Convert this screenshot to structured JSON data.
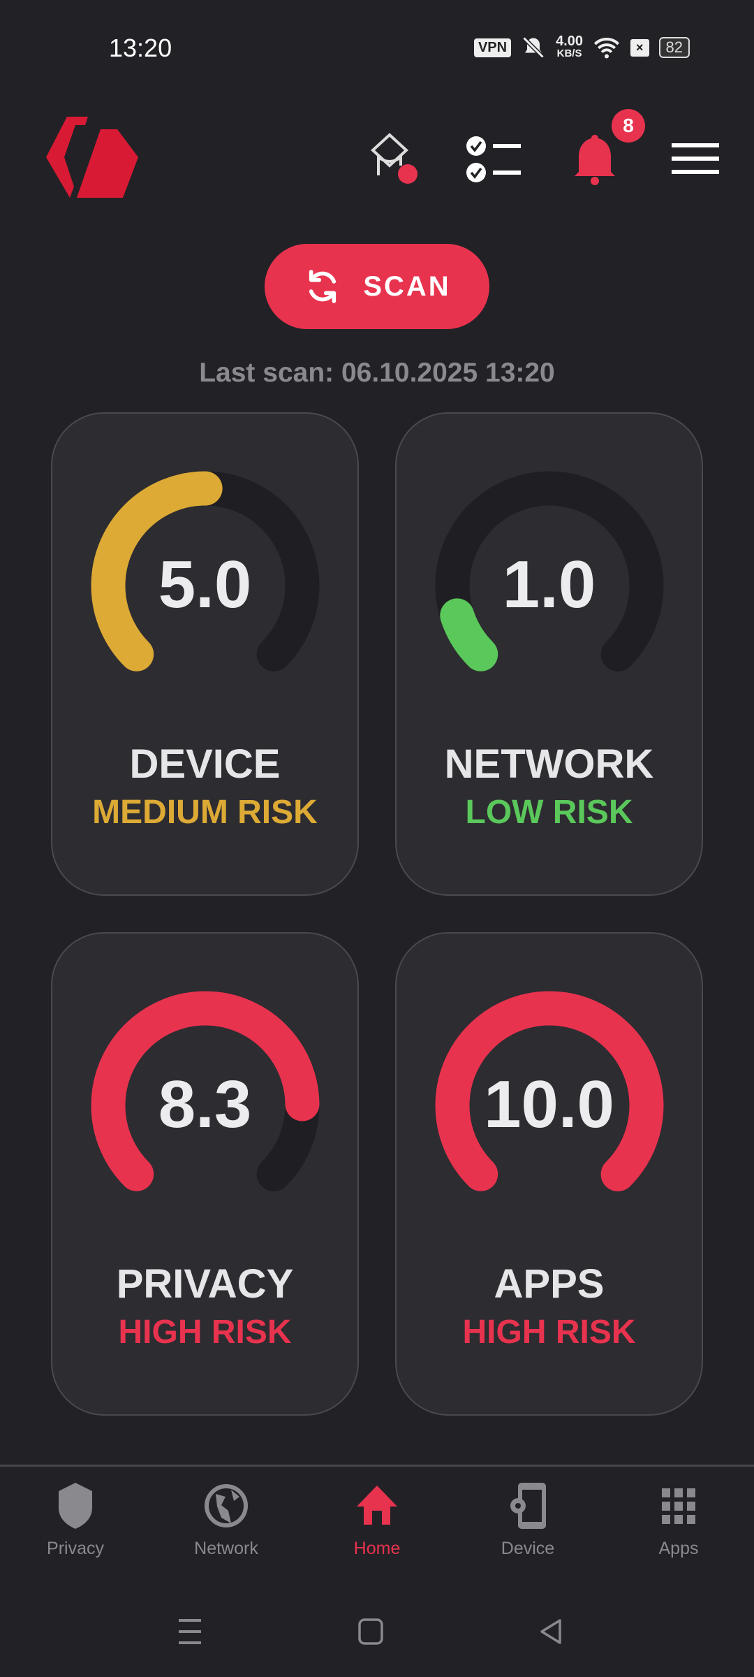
{
  "status_bar": {
    "time": "13:20",
    "vpn": "VPN",
    "speed_value": "4.00",
    "speed_unit": "KB/S",
    "battery": "82"
  },
  "header": {
    "notification_count": "8",
    "icons": [
      "logo",
      "graduation-cap-icon",
      "checklist-icon",
      "bell-icon",
      "menu-icon"
    ]
  },
  "scan": {
    "label": "SCAN",
    "last_scan": "Last scan: 06.10.2025 13:20"
  },
  "cards": [
    {
      "value": "5.0",
      "score": 5.0,
      "title": "DEVICE",
      "risk": "MEDIUM RISK",
      "color": "#dcaa35"
    },
    {
      "value": "1.0",
      "score": 1.0,
      "title": "NETWORK",
      "risk": "LOW RISK",
      "color": "#5ac85a"
    },
    {
      "value": "8.3",
      "score": 8.3,
      "title": "PRIVACY",
      "risk": "HIGH RISK",
      "color": "#e8334f"
    },
    {
      "value": "10.0",
      "score": 10.0,
      "title": "APPS",
      "risk": "HIGH RISK",
      "color": "#e8334f"
    }
  ],
  "score_max": 10,
  "nav": {
    "items": [
      {
        "label": "Privacy"
      },
      {
        "label": "Network"
      },
      {
        "label": "Home"
      },
      {
        "label": "Device"
      },
      {
        "label": "Apps"
      }
    ],
    "active": "Home"
  },
  "colors": {
    "accent": "#e8334f",
    "background": "#222126",
    "card": "#2d2c31",
    "track": "#1f1e22",
    "inactive": "#8a898e"
  }
}
